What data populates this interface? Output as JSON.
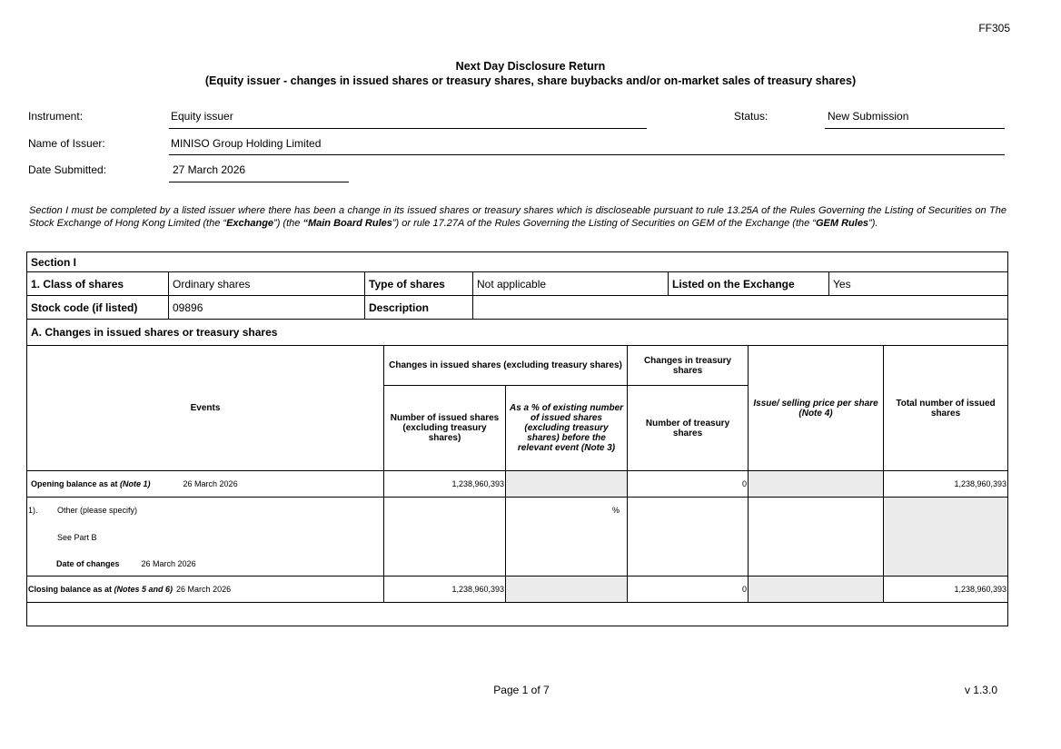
{
  "form_code": "FF305",
  "title": "Next Day Disclosure Return",
  "subtitle": "(Equity issuer - changes in issued shares or treasury shares, share buybacks and/or on-market sales of treasury shares)",
  "fields": {
    "instrument_label": "Instrument:",
    "instrument": "Equity issuer",
    "status_label": "Status:",
    "status": "New Submission",
    "issuer_label": "Name of Issuer:",
    "issuer": "MINISO Group Holding Limited",
    "date_label": "Date Submitted:",
    "date": "27 March 2026"
  },
  "intro": {
    "p1": "Section I must be completed by a listed issuer where there has been a change in its issued shares or treasury shares which is discloseable pursuant to rule 13.25A of the Rules Governing the Listing of Securities on The Stock Exchange of Hong Kong Limited (the “",
    "exchange": "Exchange",
    "p2": "”) (the ",
    "main_board": "“Main Board Rules",
    "p3": "”) or rule 17.27A of the Rules Governing the Listing of Securities on GEM of the Exchange (the “",
    "gem": "GEM Rules",
    "p4": "”)."
  },
  "section": {
    "title": "Section I",
    "class_label": "1. Class of shares",
    "class": "Ordinary shares",
    "type_label": "Type of shares",
    "type": "Not applicable",
    "listed_label": "Listed on the Exchange",
    "listed": "Yes",
    "stock_label": "Stock code (if listed)",
    "stock": "09896",
    "desc_label": "Description",
    "a_title": "A. Changes in issued shares or treasury shares"
  },
  "headers": {
    "events": "Events",
    "changes_issued": "Changes in issued shares (excluding treasury shares)",
    "changes_treasury": "Changes in treasury shares",
    "num_issued": "Number of issued shares (excluding treasury shares)",
    "pct": "As a % of existing number of issued shares (excluding treasury shares) before the relevant event (Note 3)",
    "num_treasury": "Number of treasury shares",
    "price": "Issue/ selling price per share (Note 4)",
    "total": "Total number of issued shares"
  },
  "opening": {
    "label": "Opening balance as at ",
    "note": "(Note 1)",
    "date": "26 March 2026",
    "issued": "1,238,960,393",
    "treasury": "0",
    "total": "1,238,960,393"
  },
  "event1": {
    "index": "1).",
    "type": "Other (please specify)",
    "detail": "See Part B",
    "date_label": "Date of changes",
    "date": "26 March 2026",
    "pct_symbol": "%"
  },
  "closing": {
    "label": "Closing balance as at ",
    "note": "(Notes 5 and 6)",
    "date": "26 March 2026",
    "issued": "1,238,960,393",
    "treasury": "0",
    "total": "1,238,960,393"
  },
  "footer": {
    "page": "Page 1 of 7",
    "version": "v 1.3.0"
  }
}
